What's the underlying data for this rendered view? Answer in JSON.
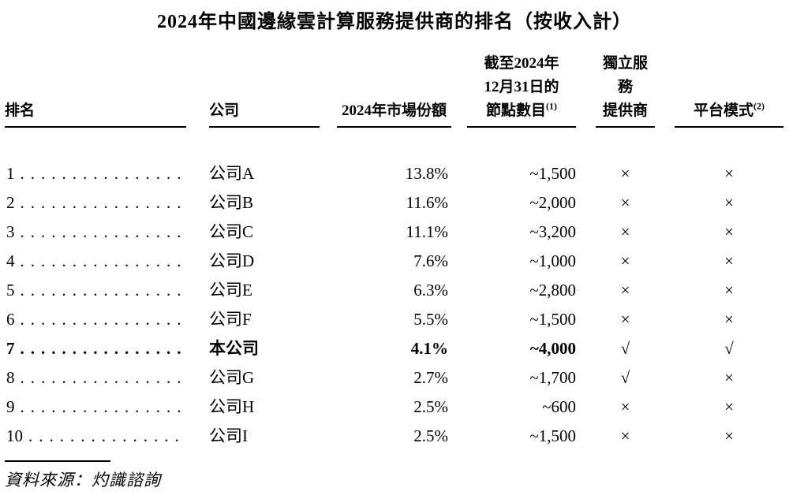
{
  "title": "2024年中國邊緣雲計算服務提供商的排名（按收入計）",
  "table": {
    "headers": {
      "rank": "排名",
      "company": "公司",
      "share": "2024年市場份額",
      "nodes_line1": "截至2024年",
      "nodes_line2": "12月31日的",
      "nodes_line3": "節點數目",
      "nodes_footnote": "(1)",
      "isp_line1": "獨立服務",
      "isp_line2": "提供商",
      "platform": "平台模式",
      "platform_footnote": "(2)"
    },
    "leader_dots": "........................................",
    "rows": [
      {
        "rank": "1",
        "company": "公司A",
        "share": "13.8%",
        "nodes": "~1,500",
        "independent": "×",
        "platform": "×",
        "emphasis": false
      },
      {
        "rank": "2",
        "company": "公司B",
        "share": "11.6%",
        "nodes": "~2,000",
        "independent": "×",
        "platform": "×",
        "emphasis": false
      },
      {
        "rank": "3",
        "company": "公司C",
        "share": "11.1%",
        "nodes": "~3,200",
        "independent": "×",
        "platform": "×",
        "emphasis": false
      },
      {
        "rank": "4",
        "company": "公司D",
        "share": "7.6%",
        "nodes": "~1,000",
        "independent": "×",
        "platform": "×",
        "emphasis": false
      },
      {
        "rank": "5",
        "company": "公司E",
        "share": "6.3%",
        "nodes": "~2,800",
        "independent": "×",
        "platform": "×",
        "emphasis": false
      },
      {
        "rank": "6",
        "company": "公司F",
        "share": "5.5%",
        "nodes": "~1,500",
        "independent": "×",
        "platform": "×",
        "emphasis": false
      },
      {
        "rank": "7",
        "company": "本公司",
        "share": "4.1%",
        "nodes": "~4,000",
        "independent": "√",
        "platform": "√",
        "emphasis": true
      },
      {
        "rank": "8",
        "company": "公司G",
        "share": "2.7%",
        "nodes": "~1,700",
        "independent": "√",
        "platform": "×",
        "emphasis": false
      },
      {
        "rank": "9",
        "company": "公司H",
        "share": "2.5%",
        "nodes": "~600",
        "independent": "×",
        "platform": "×",
        "emphasis": false
      },
      {
        "rank": "10",
        "company": "公司I",
        "share": "2.5%",
        "nodes": "~1,500",
        "independent": "×",
        "platform": "×",
        "emphasis": false
      }
    ]
  },
  "source": "資料來源：灼識諮詢",
  "colors": {
    "text": "#000000",
    "background": "#ffffff"
  }
}
